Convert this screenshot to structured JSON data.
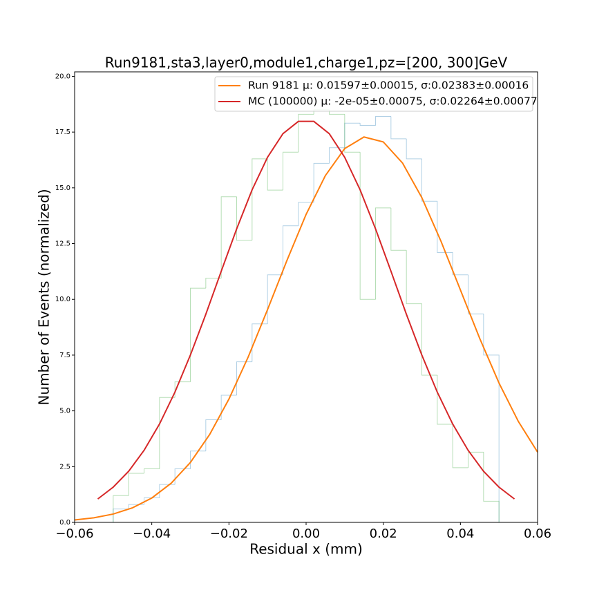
{
  "chart_data": {
    "type": "line",
    "title": "Run9181,sta3,layer0,module1,charge1,pz=[200, 300]GeV",
    "xlabel": "Residual x (mm)",
    "ylabel": "Number of Events (normalized)",
    "xlim": [
      -0.06,
      0.06
    ],
    "ylim": [
      0,
      20.2
    ],
    "xticks": [
      {
        "value": -0.06,
        "label": "−0.06"
      },
      {
        "value": -0.04,
        "label": "−0.04"
      },
      {
        "value": -0.02,
        "label": "−0.02"
      },
      {
        "value": 0,
        "label": "0.00"
      },
      0.02,
      0.04,
      0.06
    ],
    "yticks": [
      {
        "value": 0,
        "label": "0.0"
      },
      2.5,
      {
        "value": 5,
        "label": "5.0"
      },
      7.5,
      {
        "value": 10,
        "label": "10.0"
      },
      12.5,
      {
        "value": 15,
        "label": "15.0"
      },
      17.5,
      {
        "value": 20,
        "label": "20.0"
      }
    ],
    "legend": "upper right",
    "series": [
      {
        "name": "Run 9181 μ: 0.01597±0.00015, σ:0.02383±0.00016",
        "color": "#ff7f0e",
        "x": [
          -0.06,
          -0.055,
          -0.05,
          -0.045,
          -0.04,
          -0.035,
          -0.03,
          -0.025,
          -0.02,
          -0.015,
          -0.01,
          -0.005,
          0,
          0.005,
          0.01,
          0.015,
          0.02,
          0.025,
          0.03,
          0.035,
          0.04,
          0.045,
          0.05,
          0.055,
          0.06
        ],
        "values": [
          0.107,
          0.204,
          0.373,
          0.654,
          1.093,
          1.751,
          2.685,
          3.94,
          5.53,
          7.42,
          9.54,
          11.73,
          13.81,
          15.55,
          16.76,
          17.28,
          17.06,
          16.11,
          14.56,
          12.59,
          10.42,
          8.25,
          6.25,
          4.53,
          3.15
        ]
      },
      {
        "name": "MC (100000) μ: -2e-05±0.00075, σ:0.02264±0.00077",
        "color": "#d62728",
        "x": [
          -0.054,
          -0.05,
          -0.046,
          -0.042,
          -0.038,
          -0.034,
          -0.03,
          -0.026,
          -0.022,
          -0.018,
          -0.014,
          -0.01,
          -0.006,
          -0.002,
          0.002,
          0.006,
          0.01,
          0.014,
          0.018,
          0.022,
          0.026,
          0.03,
          0.034,
          0.038,
          0.042,
          0.046,
          0.05,
          0.054
        ],
        "values": [
          1.05,
          1.58,
          2.29,
          3.23,
          4.41,
          5.84,
          7.5,
          9.33,
          11.26,
          13.16,
          14.91,
          16.37,
          17.43,
          17.98,
          17.98,
          17.43,
          16.37,
          14.91,
          13.16,
          11.26,
          9.33,
          7.5,
          5.84,
          4.41,
          3.23,
          2.29,
          1.58,
          1.05
        ]
      }
    ],
    "bins": [
      -0.05,
      -0.046,
      -0.042,
      -0.038,
      -0.034,
      -0.03,
      -0.026,
      -0.022,
      -0.018,
      -0.014,
      -0.01,
      -0.006,
      -0.002,
      0.002,
      0.006,
      0.01,
      0.014,
      0.018,
      0.022,
      0.026,
      0.03,
      0.034,
      0.038,
      0.042,
      0.046,
      0.05
    ],
    "histograms": [
      {
        "color": "#1f77b4",
        "alpha": 0.35,
        "values": [
          0.6,
          0.8,
          1.1,
          1.7,
          2.4,
          3.2,
          4.6,
          5.7,
          7.2,
          8.9,
          11.1,
          13.3,
          14.35,
          16.1,
          16.8,
          17.9,
          17.8,
          18.2,
          17.2,
          16.3,
          14.4,
          12.1,
          11.1,
          9.35,
          7.5
        ]
      },
      {
        "color": "#2ca02c",
        "alpha": 0.35,
        "values": [
          1.2,
          2.2,
          2.4,
          5.6,
          6.3,
          10.5,
          10.95,
          14.6,
          12.65,
          16.3,
          14.9,
          16.6,
          18.3,
          18.5,
          18.3,
          16.6,
          10,
          14.1,
          12.2,
          9.8,
          6.6,
          4.4,
          2.45,
          3.15,
          0.95
        ]
      }
    ]
  }
}
